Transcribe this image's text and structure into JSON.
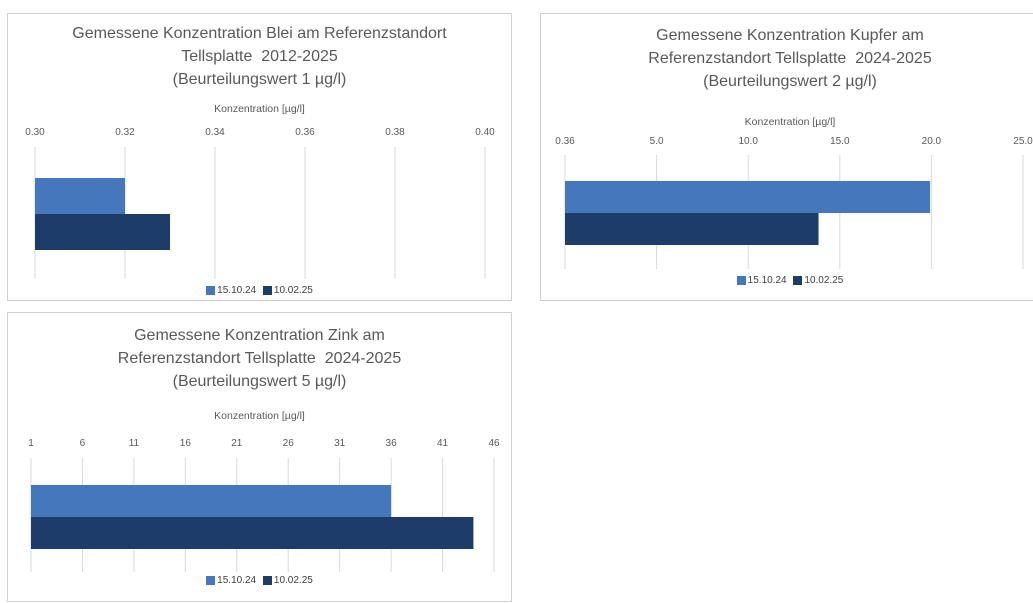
{
  "colors": {
    "series1": "#4577bd",
    "series2": "#1e3c6a",
    "grid": "#d9d9d9"
  },
  "legend": [
    "15.10.24",
    "10.02.25"
  ],
  "chart_data": [
    {
      "type": "bar",
      "orientation": "horizontal",
      "title_lines": [
        "Gemessene Konzentration Blei am Referenzstandort",
        "Tellsplatte  2012-2025",
        "(Beurteilungswert 1 µg/l)"
      ],
      "xlabel": "Konzentration [µg/l]",
      "ylabel": "",
      "xlim": [
        0.3,
        0.4
      ],
      "ticks": [
        "0.30",
        "0.32",
        "0.34",
        "0.36",
        "0.38",
        "0.40"
      ],
      "series": [
        {
          "name": "15.10.24",
          "values": [
            0.32
          ]
        },
        {
          "name": "10.02.25",
          "values": [
            0.33
          ]
        }
      ],
      "legend_position": "bottom",
      "grid": true
    },
    {
      "type": "bar",
      "orientation": "horizontal",
      "title_lines": [
        "Gemessene Konzentration Kupfer am",
        "Referenzstandort Tellsplatte  2024-2025",
        "(Beurteilungswert 2 µg/l)"
      ],
      "xlabel": "Konzentration [µg/l]",
      "ylabel": "",
      "xlim": [
        0.36,
        25.0
      ],
      "ticks": [
        "0.36",
        "5.0",
        "10.0",
        "15.0",
        "20.0",
        "25.0"
      ],
      "series": [
        {
          "name": "15.10.24",
          "values": [
            20.0
          ]
        },
        {
          "name": "10.02.25",
          "values": [
            14.0
          ]
        }
      ],
      "legend_position": "bottom",
      "grid": true
    },
    {
      "type": "bar",
      "orientation": "horizontal",
      "title_lines": [
        "Gemessene Konzentration Zink am",
        "Referenzstandort Tellsplatte  2024-2025",
        "(Beurteilungswert 5 µg/l)"
      ],
      "xlabel": "Konzentration [µg/l]",
      "ylabel": "",
      "xlim": [
        1,
        46
      ],
      "ticks": [
        "1",
        "6",
        "11",
        "16",
        "21",
        "26",
        "31",
        "36",
        "41",
        "46"
      ],
      "series": [
        {
          "name": "15.10.24",
          "values": [
            36
          ]
        },
        {
          "name": "10.02.25",
          "values": [
            44
          ]
        }
      ],
      "legend_position": "bottom",
      "grid": true
    }
  ]
}
